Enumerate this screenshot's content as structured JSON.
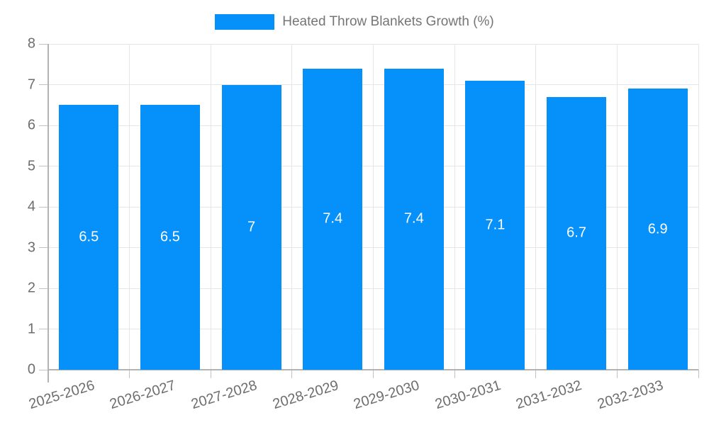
{
  "chart_data": {
    "type": "bar",
    "title": "",
    "legend": {
      "position": "top",
      "label": "Heated Throw Blankets Growth (%)"
    },
    "categories": [
      "2025-2026",
      "2026-2027",
      "2027-2028",
      "2028-2029",
      "2029-2030",
      "2030-2031",
      "2031-2032",
      "2032-2033"
    ],
    "series": [
      {
        "name": "Heated Throw Blankets Growth (%)",
        "values": [
          6.5,
          6.5,
          7,
          7.4,
          7.4,
          7.1,
          6.7,
          6.9
        ]
      }
    ],
    "bar_labels": [
      "6.5",
      "6.5",
      "7",
      "7.4",
      "7.4",
      "7.1",
      "6.7",
      "6.9"
    ],
    "xlabel": "",
    "ylabel": "",
    "ylim": [
      0,
      8
    ],
    "ytick_labels": [
      "0",
      "1",
      "2",
      "3",
      "4",
      "5",
      "6",
      "7",
      "8"
    ],
    "grid": true,
    "colors": {
      "bar": "#0590FA",
      "bar_label_text": "#ffffff",
      "grid_line": "#e6e6e6",
      "axis_line": "#b3b3b3",
      "tick_mark": "#c2c2c2",
      "axis_text": "#6e6e6e",
      "legend_text": "#757575",
      "background": "#ffffff"
    }
  }
}
